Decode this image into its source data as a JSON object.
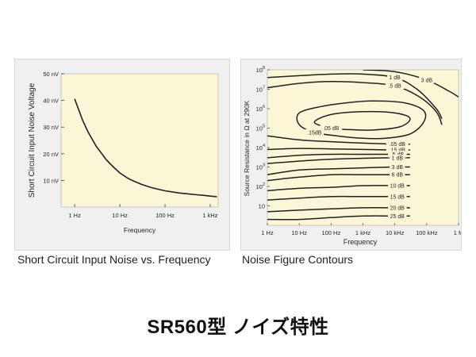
{
  "footer_title": "SR560型 ノイズ特性",
  "chart_data": [
    {
      "type": "line",
      "caption": "Short Circuit Input Noise vs. Frequency",
      "xlabel": "Frequency",
      "ylabel": "Short Circuit Input Noise Voltage",
      "x_scale": "log",
      "xlim": [
        0.5,
        1500
      ],
      "ylim": [
        0,
        50
      ],
      "x_ticks": [
        1,
        10,
        100,
        1000
      ],
      "x_tick_labels": [
        "1 Hz",
        "10 Hz",
        "100 Hz",
        "1 kHz"
      ],
      "y_ticks": [
        10,
        20,
        30,
        40,
        50
      ],
      "y_tick_labels": [
        "10 nV",
        "20 nV",
        "30 nV",
        "40 nV",
        "50 nV"
      ],
      "grid": false,
      "colors": {
        "plot_background": "#fbf7d6",
        "line": "#231f20",
        "panel": "#f0f0f0"
      },
      "series": [
        {
          "x": [
            1,
            1.5,
            2,
            3,
            5,
            7,
            10,
            15,
            20,
            30,
            50,
            70,
            100,
            200,
            300,
            500,
            700,
            1000,
            1400
          ],
          "y": [
            40.6,
            32.5,
            28,
            22.8,
            17.8,
            15.2,
            12.8,
            10.8,
            9.8,
            8.5,
            7.3,
            6.7,
            6.1,
            5.3,
            5.0,
            4.6,
            4.4,
            4.1,
            3.9
          ]
        }
      ]
    },
    {
      "type": "line",
      "caption": "Noise Figure Contours",
      "xlabel": "Frequency",
      "ylabel": "Source Resistance in Ω at 290K",
      "x_scale": "log",
      "y_scale": "log",
      "xlim": [
        1,
        1000000
      ],
      "ylim": [
        1,
        100000000
      ],
      "x_ticks": [
        1,
        10,
        100,
        1000,
        10000,
        100000,
        1000000
      ],
      "x_tick_labels": [
        "1 Hz",
        "10 Hz",
        "100 Hz",
        "1 kHz",
        "10 kHz",
        "100 kHz",
        "1 M"
      ],
      "y_ticks": [
        10,
        100,
        1000,
        10000,
        100000,
        1000000,
        10000000,
        100000000
      ],
      "y_tick_labels": [
        "10",
        "10",
        "10",
        "10",
        "10",
        "10",
        "10",
        "10"
      ],
      "y_tick_exponents": [
        "",
        "2",
        "3",
        "4",
        "5",
        "6",
        "7",
        "8"
      ],
      "grid": false,
      "colors": {
        "plot_background": "#fbf7d6",
        "line": "#231f20",
        "panel": "#f0f0f0"
      },
      "closed_contours": [
        {
          "label": ".05 dB",
          "points": [
            [
              100,
              100000
            ],
            [
              30,
              200000
            ],
            [
              100,
              500000
            ],
            [
              1000,
              700000
            ],
            [
              10000,
              600000
            ],
            [
              30000,
              320000
            ],
            [
              15000,
              120000
            ],
            [
              2000,
              80000
            ],
            [
              300,
              85000
            ]
          ]
        },
        {
          "label": ".15dB",
          "points": [
            [
              30,
              60000
            ],
            [
              10,
              150000
            ],
            [
              10,
              600000
            ],
            [
              50,
              1300000
            ],
            [
              300,
              2000000
            ],
            [
              2000,
              2500000
            ],
            [
              20000,
              2000000
            ],
            [
              80000,
              800000
            ],
            [
              80000,
              200000
            ],
            [
              30000,
              50000
            ],
            [
              5000,
              30000
            ],
            [
              1000,
              30000
            ],
            [
              150,
              40000
            ]
          ]
        }
      ],
      "open_contours": [
        {
          "label": "1 dB",
          "points": [
            [
              1,
              40000000
            ],
            [
              10,
              50000000
            ],
            [
              100,
              60000000
            ],
            [
              1000,
              60000000
            ],
            [
              10000,
              40000000
            ],
            [
              50000,
              10000000
            ],
            [
              200000,
              1000000
            ],
            [
              300000,
              300000
            ]
          ]
        },
        {
          "label": ".5 dB",
          "points": [
            [
              1,
              12000000
            ],
            [
              10,
              20000000
            ],
            [
              100,
              25000000
            ],
            [
              1000,
              22000000
            ],
            [
              10000,
              15000000
            ],
            [
              60000,
              4000000
            ],
            [
              200000,
              700000
            ],
            [
              300000,
              150000
            ]
          ]
        },
        {
          "label": "3 dB",
          "points": [
            [
              1000,
              100000000
            ],
            [
              10000,
              80000000
            ],
            [
              100000,
              30000000
            ],
            [
              500000,
              8000000
            ],
            [
              1000000,
              4000000
            ]
          ]
        },
        {
          "label": ".05 dB",
          "points": [
            [
              1,
              40000
            ],
            [
              10,
              25000
            ],
            [
              100,
              20000
            ],
            [
              1000,
              17000
            ],
            [
              10000,
              15000
            ],
            [
              30000,
              15000
            ]
          ]
        },
        {
          "label": ".15 dB",
          "points": [
            [
              1,
              8000
            ],
            [
              10,
              9000
            ],
            [
              100,
              8500
            ],
            [
              1000,
              8000
            ],
            [
              10000,
              7500
            ],
            [
              30000,
              7500
            ]
          ]
        },
        {
          "label": ".5 dB",
          "points": [
            [
              1,
              3000
            ],
            [
              10,
              4000
            ],
            [
              100,
              4500
            ],
            [
              1000,
              4500
            ],
            [
              10000,
              4500
            ],
            [
              30000,
              4500
            ]
          ]
        },
        {
          "label": "1 dB",
          "points": [
            [
              1,
              1500
            ],
            [
              10,
              2000
            ],
            [
              100,
              2500
            ],
            [
              1000,
              2800
            ],
            [
              10000,
              3000
            ],
            [
              30000,
              3000
            ]
          ]
        },
        {
          "label": "3 dB",
          "points": [
            [
              1,
              400
            ],
            [
              10,
              700
            ],
            [
              100,
              800
            ],
            [
              1000,
              900
            ],
            [
              10000,
              1000
            ],
            [
              30000,
              1000
            ]
          ]
        },
        {
          "label": "6 dB",
          "points": [
            [
              1,
              200
            ],
            [
              10,
              300
            ],
            [
              100,
              400
            ],
            [
              1000,
              400
            ],
            [
              10000,
              400
            ],
            [
              30000,
              400
            ]
          ]
        },
        {
          "label": "10 dB",
          "points": [
            [
              1,
              60
            ],
            [
              10,
              80
            ],
            [
              100,
              90
            ],
            [
              1000,
              110
            ],
            [
              10000,
              110
            ],
            [
              30000,
              110
            ]
          ]
        },
        {
          "label": "15 dB",
          "points": [
            [
              1,
              20
            ],
            [
              10,
              25
            ],
            [
              100,
              30
            ],
            [
              1000,
              30
            ],
            [
              10000,
              30
            ],
            [
              30000,
              30
            ]
          ]
        },
        {
          "label": "20 dB",
          "points": [
            [
              1,
              5
            ],
            [
              10,
              6
            ],
            [
              100,
              7
            ],
            [
              1000,
              8
            ],
            [
              10000,
              8
            ],
            [
              30000,
              8
            ]
          ]
        },
        {
          "label": "25 dB",
          "points": [
            [
              1,
              2
            ],
            [
              10,
              2
            ],
            [
              100,
              2.5
            ],
            [
              1000,
              3
            ],
            [
              10000,
              3
            ],
            [
              30000,
              3
            ]
          ]
        }
      ]
    }
  ]
}
